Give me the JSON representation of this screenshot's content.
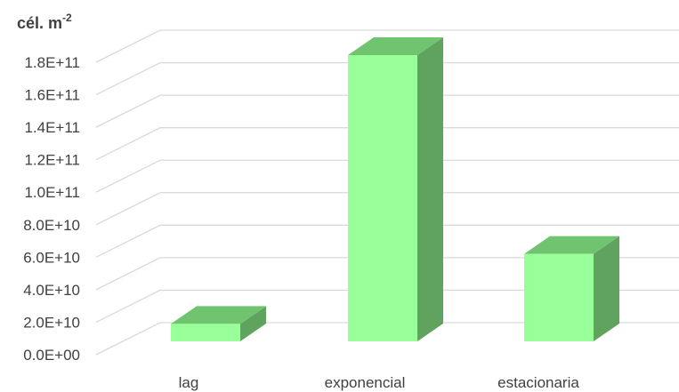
{
  "chart_data": {
    "type": "bar",
    "style": "3d-column",
    "ylabel_base": "cél. m",
    "ylabel_exponent": "-2",
    "categories": [
      "lag",
      "exponencial",
      "estacionaria"
    ],
    "values": [
      11000000000,
      180000000000,
      55000000000
    ],
    "ylim": [
      0,
      180000000000
    ],
    "yticks": [
      {
        "value": 0,
        "label": "0.0E+00"
      },
      {
        "value": 20000000000,
        "label": "2.0E+10"
      },
      {
        "value": 40000000000,
        "label": "4.0E+10"
      },
      {
        "value": 60000000000,
        "label": "6.0E+10"
      },
      {
        "value": 80000000000,
        "label": "8.0E+10"
      },
      {
        "value": 100000000000,
        "label": "1.0E+11"
      },
      {
        "value": 120000000000,
        "label": "1.2E+11"
      },
      {
        "value": 140000000000,
        "label": "1.4E+11"
      },
      {
        "value": 160000000000,
        "label": "1.6E+11"
      },
      {
        "value": 180000000000,
        "label": "1.8E+11"
      }
    ],
    "grid": true,
    "legend": "none",
    "colors": {
      "bar_front": "#99FF99",
      "bar_top": "#70C470",
      "bar_side": "#5FA35F",
      "grid": "#D9D9D9",
      "text": "#404040"
    }
  }
}
